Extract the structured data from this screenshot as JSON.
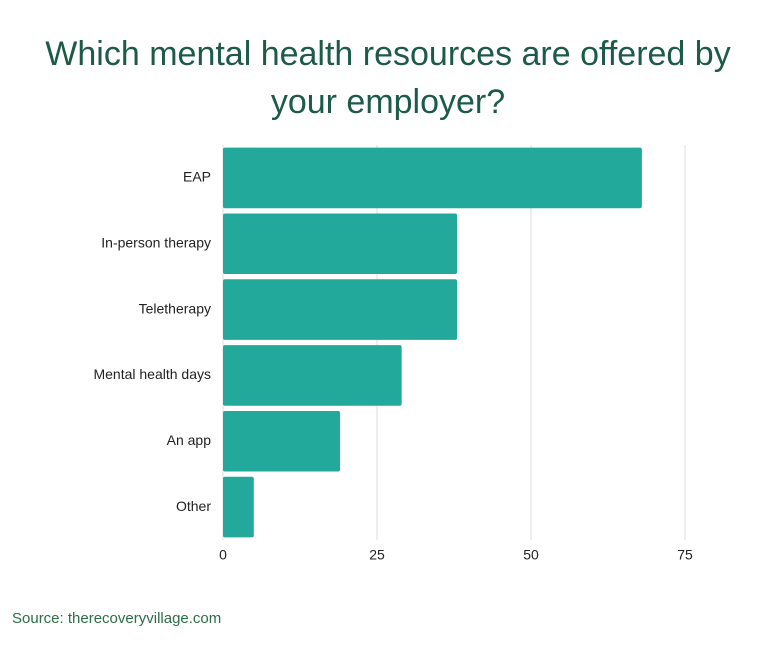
{
  "chart_data": {
    "type": "bar",
    "orientation": "horizontal",
    "title": "Which mental health resources are offered by your employer?",
    "categories": [
      "EAP",
      "In-person therapy",
      "Teletherapy",
      "Mental health days",
      "An app",
      "Other"
    ],
    "values": [
      68,
      38,
      38,
      29,
      19,
      5
    ],
    "color": "#22a99b",
    "xlim": [
      0,
      75
    ],
    "xticks": [
      0,
      25,
      50,
      75
    ],
    "grid": true,
    "source": "Source: therecoveryvillage.com"
  }
}
